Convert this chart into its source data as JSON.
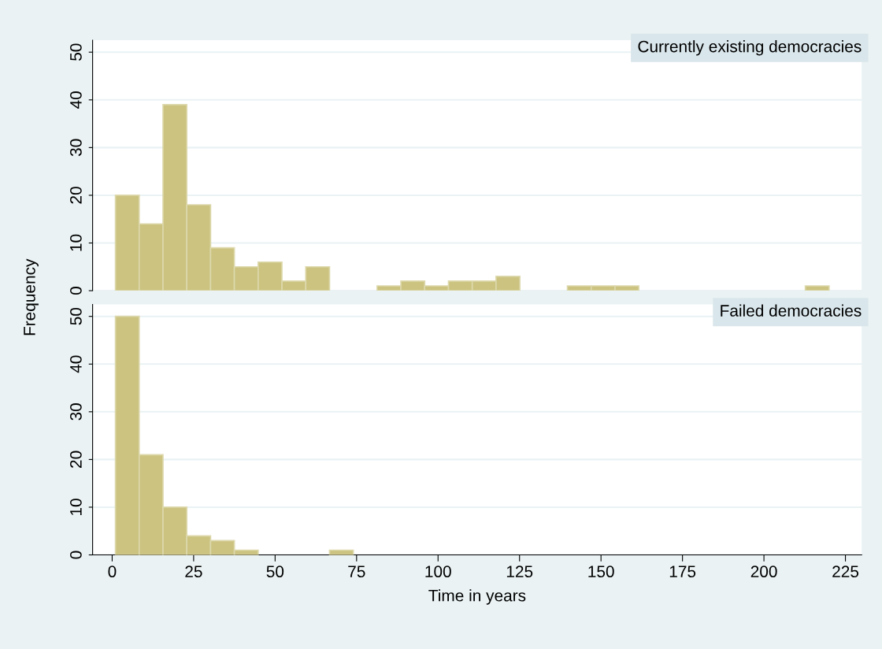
{
  "chart_data": [
    {
      "type": "histogram",
      "title": "Currently existing democracies",
      "ylabel": "Frequency",
      "bins": [
        1,
        8.3,
        15.6,
        22.9,
        30.2,
        37.5,
        44.8,
        52.1,
        59.4,
        66.7,
        74,
        81.3,
        88.6,
        95.9,
        103.2,
        110.5,
        117.8,
        125.1,
        132.4,
        139.7,
        147,
        154.3,
        161.6,
        168.9,
        176.2,
        183.5,
        190.8,
        198.1,
        205.4,
        212.7,
        220
      ],
      "values": [
        20,
        14,
        39,
        18,
        9,
        5,
        6,
        2,
        5,
        0,
        0,
        1,
        2,
        1,
        2,
        2,
        3,
        0,
        0,
        1,
        1,
        1,
        0,
        0,
        0,
        0,
        0,
        0,
        0,
        1
      ],
      "color": "#cbc37f",
      "xlim": [
        -6,
        230
      ],
      "ylim": [
        0,
        52.5
      ],
      "xticks": [
        0,
        25,
        50,
        75,
        100,
        125,
        150,
        175,
        200,
        225
      ],
      "yticks": [
        0,
        10,
        20,
        30,
        40,
        50
      ],
      "grid": "y",
      "tick_labels": "y"
    },
    {
      "type": "histogram",
      "title": "Failed democracies",
      "xlabel": "Time in years",
      "bins": [
        1,
        8.3,
        15.6,
        22.9,
        30.2,
        37.5,
        44.8,
        52.1,
        59.4,
        66.7,
        74,
        81.3,
        88.6,
        95.9,
        103.2,
        110.5,
        117.8,
        125.1,
        132.4,
        139.7,
        147,
        154.3,
        161.6,
        168.9,
        176.2,
        183.5,
        190.8,
        198.1,
        205.4,
        212.7,
        220
      ],
      "values": [
        50,
        21,
        10,
        4,
        3,
        1,
        0,
        0,
        0,
        1,
        0,
        0,
        0,
        0,
        0,
        0,
        0,
        0,
        0,
        0,
        0,
        0,
        0,
        0,
        0,
        0,
        0,
        0,
        0,
        0
      ],
      "color": "#cbc37f",
      "xlim": [
        -6,
        230
      ],
      "ylim": [
        0,
        52.5
      ],
      "xticks": [
        0,
        25,
        50,
        75,
        100,
        125,
        150,
        175,
        200,
        225
      ],
      "yticks": [
        0,
        10,
        20,
        30,
        40,
        50
      ],
      "grid": "y"
    }
  ]
}
